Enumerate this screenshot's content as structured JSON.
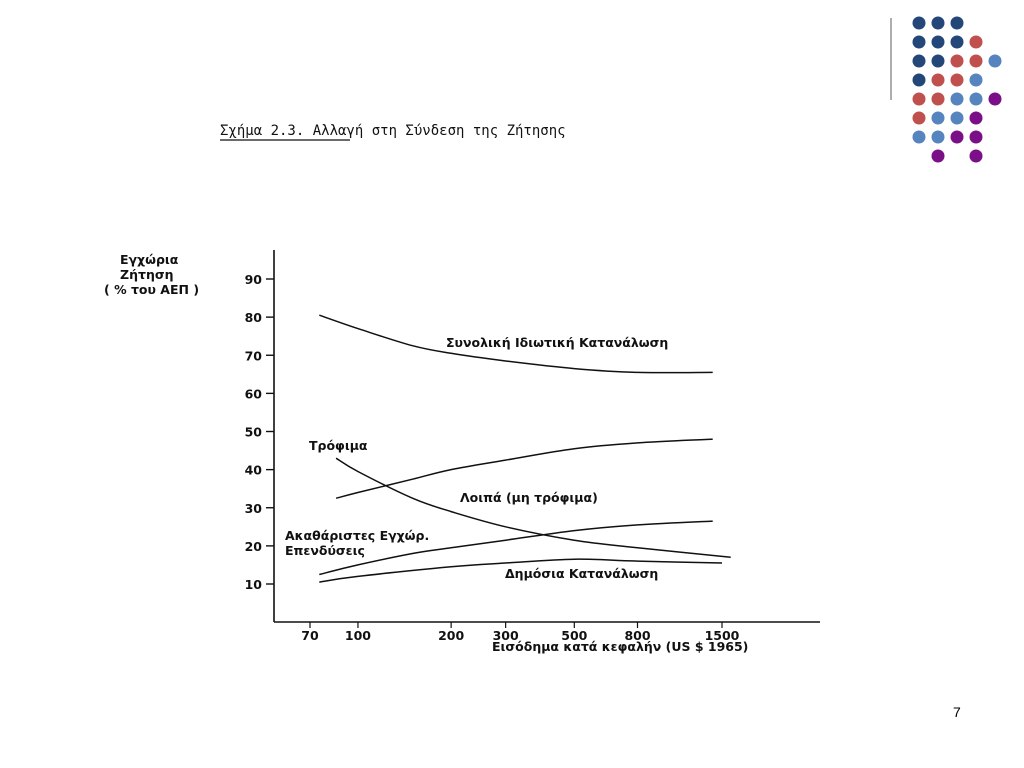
{
  "slide": {
    "number": "7"
  },
  "decor": {
    "colors": {
      "navy": "#24477a",
      "rose": "#c0504d",
      "sky": "#5584bf",
      "purple": "#7b0f87"
    },
    "grid": [
      [
        "navy",
        "navy",
        "navy",
        null,
        null
      ],
      [
        "navy",
        "navy",
        "navy",
        "rose",
        null
      ],
      [
        "navy",
        "navy",
        "rose",
        "rose",
        "sky"
      ],
      [
        "navy",
        "rose",
        "rose",
        "sky",
        null
      ],
      [
        "rose",
        "rose",
        "sky",
        "sky",
        "purple"
      ],
      [
        "rose",
        "sky",
        "sky",
        "purple",
        null
      ],
      [
        "sky",
        "sky",
        "purple",
        "purple",
        null
      ],
      [
        null,
        "purple",
        null,
        "purple",
        null
      ]
    ]
  },
  "chart_data": {
    "type": "line",
    "title": "Σχήμα 2.3.  Αλλαγή στη Σύνδεση της Ζήτησης",
    "ylabel": [
      "Εγχώρια",
      "Ζήτηση",
      "( % του ΑΕΠ )"
    ],
    "xlabel": "Εισόδημα κατά κεφαλήν (US $ 1965)",
    "x_scale": "log",
    "xlim": [
      60,
      1800
    ],
    "ylim": [
      0,
      95
    ],
    "x_ticks": [
      70,
      100,
      200,
      300,
      500,
      800,
      1500
    ],
    "y_ticks": [
      10,
      20,
      30,
      40,
      50,
      60,
      70,
      80,
      90
    ],
    "grid": false,
    "series": [
      {
        "name": "Συνολική Ιδιωτική Κατανάλωση",
        "x": [
          75,
          100,
          150,
          200,
          300,
          500,
          800,
          1400
        ],
        "y": [
          80.5,
          77,
          72.5,
          70.5,
          68.5,
          66.5,
          65.5,
          65.5
        ]
      },
      {
        "name": "Τρόφιμα",
        "x": [
          85,
          100,
          150,
          200,
          300,
          500,
          800,
          1600
        ],
        "y": [
          43,
          39.5,
          32.5,
          29,
          25,
          21.5,
          19.5,
          17
        ]
      },
      {
        "name": "Λοιπά (μη τρόφιμα)",
        "x": [
          85,
          100,
          150,
          200,
          300,
          500,
          800,
          1400
        ],
        "y": [
          32.5,
          34,
          37.5,
          40,
          42.5,
          45.5,
          47,
          48
        ]
      },
      {
        "name": "Ακαθάριστες Εγχώρ. Επενδύσεις",
        "x": [
          75,
          100,
          150,
          200,
          300,
          500,
          800,
          1400
        ],
        "y": [
          12.5,
          15,
          18,
          19.5,
          21.5,
          24,
          25.5,
          26.5
        ]
      },
      {
        "name": "Δημόσια Κατανάλωση",
        "x": [
          75,
          100,
          200,
          300,
          500,
          800,
          1500
        ],
        "y": [
          10.5,
          12,
          14.5,
          15.5,
          16.5,
          16,
          15.5
        ]
      }
    ]
  }
}
